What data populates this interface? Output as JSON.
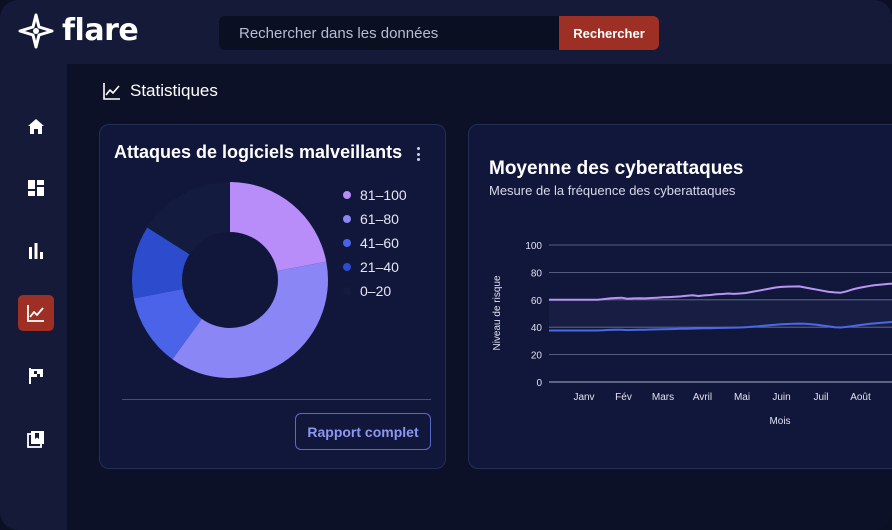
{
  "brand": {
    "name": "flare"
  },
  "search": {
    "placeholder": "Rechercher dans les données",
    "button_label": "Rechercher"
  },
  "sidebar": {
    "items": [
      {
        "name": "home",
        "icon": "home-icon",
        "active": false
      },
      {
        "name": "dashboard",
        "icon": "dashboard-icon",
        "active": false
      },
      {
        "name": "bar-chart",
        "icon": "bar-chart-icon",
        "active": false
      },
      {
        "name": "statistics",
        "icon": "line-chart-icon",
        "active": true
      },
      {
        "name": "flag",
        "icon": "flag-icon",
        "active": false
      },
      {
        "name": "library",
        "icon": "library-icon",
        "active": false
      }
    ]
  },
  "page": {
    "title": "Statistiques"
  },
  "malware_card": {
    "title": "Attaques de logiciels malveillants",
    "report_button": "Rapport complet",
    "legend": [
      {
        "label": "81–100",
        "color": "#b88cf9"
      },
      {
        "label": "61–80",
        "color": "#8a86f5"
      },
      {
        "label": "41–60",
        "color": "#4a63e8"
      },
      {
        "label": "21–40",
        "color": "#2d4bcd"
      },
      {
        "label": "0–20",
        "color": "#131b3e"
      }
    ]
  },
  "cyber_card": {
    "title": "Moyenne des cyberattaques",
    "subtitle": "Mesure de la fréquence des cyberattaques"
  },
  "chart_data": [
    {
      "type": "pie",
      "title": "Attaques de logiciels malveillants",
      "categories": [
        "81–100",
        "61–80",
        "41–60",
        "21–40",
        "0–20"
      ],
      "values": [
        22,
        38,
        12,
        12,
        16
      ],
      "colors": [
        "#b88cf9",
        "#8a86f5",
        "#4a63e8",
        "#2d4bcd",
        "#131b3e"
      ],
      "donut": true
    },
    {
      "type": "line",
      "title": "Moyenne des cyberattaques",
      "xlabel": "Mois",
      "ylabel": "Niveau de risque",
      "ylim": [
        0,
        100
      ],
      "yticks": [
        0,
        20,
        40,
        60,
        80,
        100
      ],
      "categories": [
        "Janv",
        "Fév",
        "Mars",
        "Avril",
        "Mai",
        "Juin",
        "Juil",
        "Août"
      ],
      "x": [
        0.35,
        0.5,
        0.65,
        0.8,
        0.95,
        1.1,
        1.25,
        1.4,
        1.55,
        1.7,
        1.85,
        2.0,
        2.15,
        2.3,
        2.45,
        2.6,
        2.75,
        2.9,
        3.05,
        3.2,
        3.35,
        3.5,
        3.65,
        3.8,
        3.95,
        4.1,
        4.25,
        4.4,
        4.55,
        4.7,
        4.85,
        5.0,
        5.15,
        5.3,
        5.45,
        5.6,
        5.75,
        5.9,
        6.05,
        6.2,
        6.35,
        6.5,
        6.65,
        6.8,
        6.95,
        7.1,
        7.25,
        7.4,
        7.55,
        7.7,
        7.85
      ],
      "series": [
        {
          "color": "#b895f5",
          "values": [
            60,
            60.5,
            61,
            61.3,
            61.5,
            60.8,
            61,
            61.2,
            61,
            61.3,
            61.5,
            61.8,
            62,
            62.2,
            62.5,
            63,
            63.3,
            62.8,
            63.2,
            63.5,
            64,
            64.2,
            64.6,
            64.3,
            64.6,
            65,
            65.8,
            66.6,
            67.4,
            68.2,
            69,
            69.4,
            69.6,
            69.7,
            69.8,
            69,
            68.2,
            67.4,
            66.6,
            65.8,
            65.4,
            65.2,
            66.2,
            67.6,
            68.6,
            69.4,
            70.2,
            70.8,
            71.2,
            71.6,
            72
          ]
        },
        {
          "color": "#4a68e6",
          "values": [
            37.6,
            37.8,
            38,
            38.1,
            38.1,
            37.9,
            38,
            38.1,
            38.2,
            38.3,
            38.4,
            38.5,
            38.6,
            38.7,
            38.8,
            38.9,
            39,
            39.1,
            39.2,
            39.3,
            39.4,
            39.5,
            39.6,
            39.7,
            39.8,
            40,
            40.3,
            40.6,
            41,
            41.4,
            41.8,
            42.1,
            42.3,
            42.5,
            42.6,
            42.5,
            42.2,
            41.8,
            41.2,
            40.6,
            40,
            39.8,
            40.2,
            40.8,
            41.4,
            42,
            42.5,
            42.9,
            43.3,
            43.6,
            44
          ]
        }
      ]
    }
  ]
}
